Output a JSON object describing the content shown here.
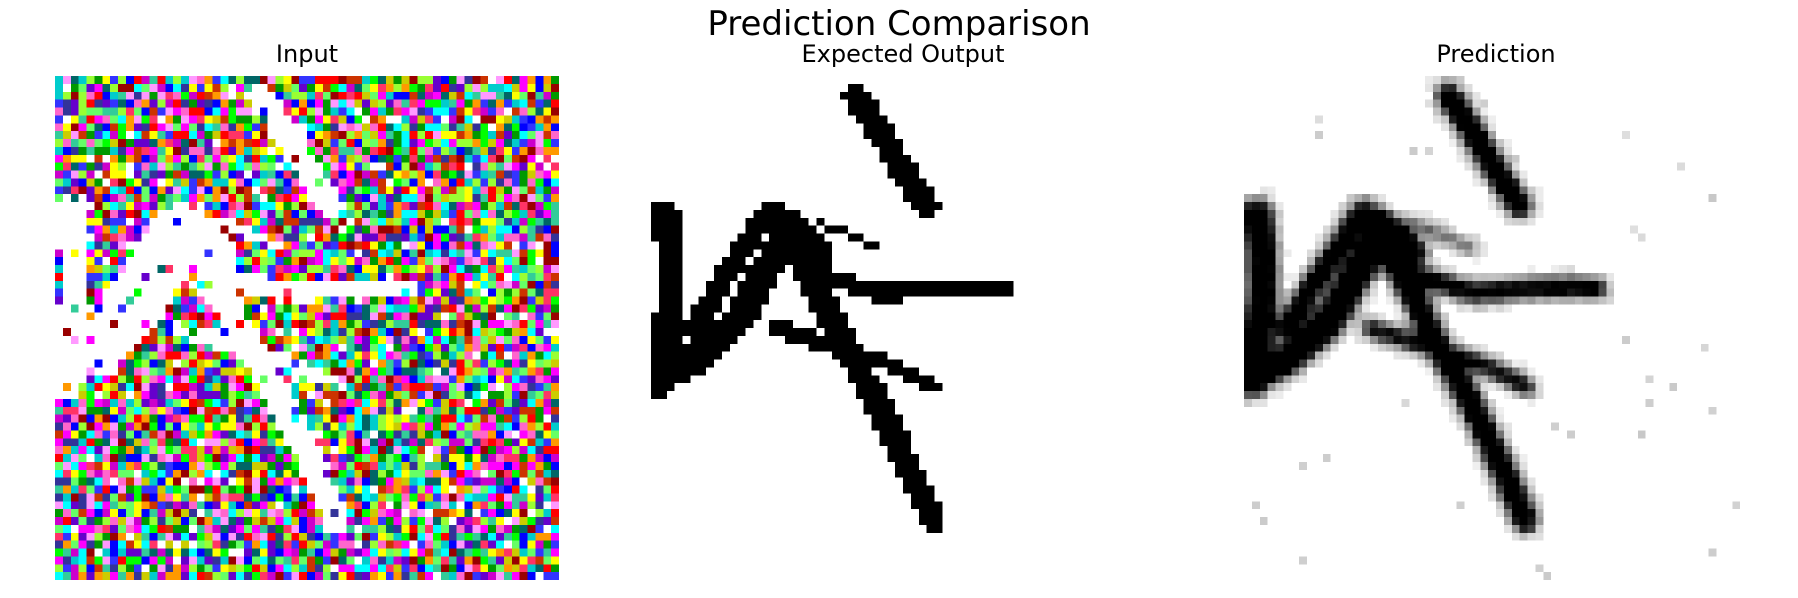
{
  "figure": {
    "title": "Prediction Comparison",
    "panels": [
      {
        "id": "input",
        "title": "Input"
      },
      {
        "id": "expected",
        "title": "Expected Output"
      },
      {
        "id": "prediction",
        "title": "Prediction"
      }
    ]
  },
  "colors": {
    "ink": "#000000",
    "background": "#ffffff"
  }
}
